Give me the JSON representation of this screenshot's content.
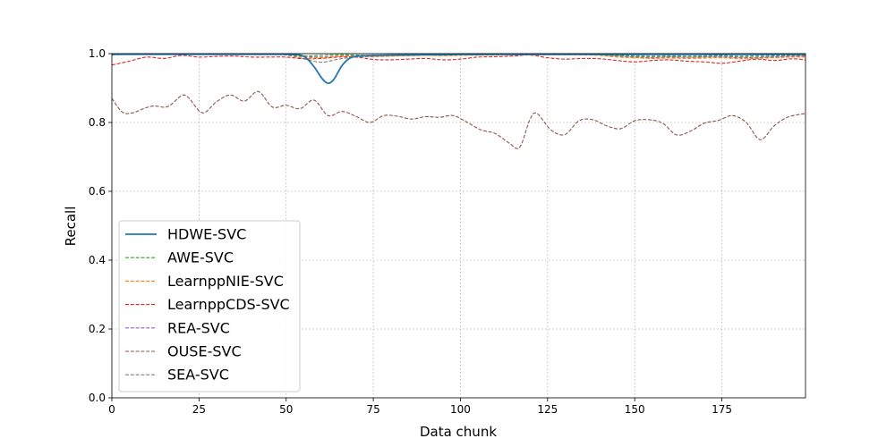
{
  "chart_data": {
    "type": "line",
    "title": "",
    "xlabel": "Data chunk",
    "ylabel": "Recall",
    "xlim": [
      0,
      199
    ],
    "ylim": [
      0.0,
      1.0
    ],
    "xticks": [
      0,
      25,
      50,
      75,
      100,
      125,
      150,
      175
    ],
    "yticks": [
      0.0,
      0.2,
      0.4,
      0.6,
      0.8,
      1.0
    ],
    "ytick_labels": [
      "0.0",
      "0.2",
      "0.4",
      "0.6",
      "0.8",
      "1.0"
    ],
    "grid": true,
    "legend_position": "center-left",
    "x": [
      0,
      5,
      10,
      15,
      20,
      25,
      30,
      35,
      40,
      45,
      50,
      55,
      60,
      65,
      70,
      75,
      80,
      85,
      90,
      95,
      100,
      105,
      110,
      115,
      120,
      125,
      130,
      135,
      140,
      145,
      150,
      155,
      160,
      165,
      170,
      175,
      180,
      185,
      190,
      195,
      199
    ],
    "series": [
      {
        "name": "HDWE-SVC",
        "color": "#1f77b4",
        "style": "solid",
        "x": [
          0,
          10,
          20,
          30,
          40,
          50,
          54,
          56,
          58,
          60,
          61,
          62,
          63,
          64,
          66,
          68,
          70,
          75,
          80,
          90,
          100,
          120,
          140,
          160,
          180,
          199
        ],
        "values": [
          0.998,
          0.998,
          0.998,
          0.998,
          0.998,
          0.998,
          0.996,
          0.985,
          0.962,
          0.932,
          0.92,
          0.914,
          0.918,
          0.93,
          0.965,
          0.985,
          0.992,
          0.995,
          0.996,
          0.997,
          0.998,
          0.998,
          0.998,
          0.998,
          0.998,
          0.998
        ]
      },
      {
        "name": "AWE-SVC",
        "color": "#2ca02c",
        "style": "dashed",
        "values": [
          0.997,
          0.998,
          0.998,
          0.998,
          0.998,
          0.998,
          0.998,
          0.998,
          0.998,
          0.998,
          0.997,
          0.993,
          0.995,
          0.997,
          0.996,
          0.995,
          0.996,
          0.996,
          0.997,
          0.996,
          0.997,
          0.997,
          0.997,
          0.998,
          0.998,
          0.998,
          0.998,
          0.998,
          0.997,
          0.995,
          0.994,
          0.993,
          0.994,
          0.993,
          0.994,
          0.995,
          0.993,
          0.994,
          0.995,
          0.996,
          0.996
        ]
      },
      {
        "name": "LearnppNIE-SVC",
        "color": "#ff7f0e",
        "style": "dashed",
        "values": [
          0.997,
          0.998,
          0.998,
          0.998,
          0.998,
          0.998,
          0.998,
          0.998,
          0.998,
          0.998,
          0.997,
          0.99,
          0.988,
          0.992,
          0.993,
          0.992,
          0.993,
          0.994,
          0.995,
          0.994,
          0.995,
          0.996,
          0.996,
          0.997,
          0.997,
          0.997,
          0.997,
          0.996,
          0.995,
          0.99,
          0.988,
          0.986,
          0.987,
          0.986,
          0.987,
          0.988,
          0.985,
          0.986,
          0.988,
          0.99,
          0.99
        ]
      },
      {
        "name": "LearnppCDS-SVC",
        "color": "#d62728",
        "style": "dashed",
        "values": [
          0.967,
          0.978,
          0.99,
          0.986,
          0.995,
          0.99,
          0.992,
          0.993,
          0.99,
          0.99,
          0.99,
          0.985,
          0.986,
          0.99,
          0.99,
          0.983,
          0.982,
          0.984,
          0.986,
          0.982,
          0.984,
          0.99,
          0.991,
          0.993,
          0.996,
          0.988,
          0.984,
          0.986,
          0.985,
          0.98,
          0.976,
          0.98,
          0.982,
          0.978,
          0.976,
          0.972,
          0.978,
          0.984,
          0.98,
          0.985,
          0.982
        ]
      },
      {
        "name": "REA-SVC",
        "color": "#9467bd",
        "style": "dashed",
        "values": [
          0.997,
          0.998,
          0.998,
          0.998,
          0.998,
          0.998,
          0.998,
          0.998,
          0.998,
          0.998,
          0.997,
          0.992,
          0.99,
          0.993,
          0.994,
          0.993,
          0.994,
          0.995,
          0.995,
          0.995,
          0.996,
          0.996,
          0.997,
          0.997,
          0.997,
          0.997,
          0.997,
          0.997,
          0.996,
          0.994,
          0.992,
          0.99,
          0.991,
          0.99,
          0.991,
          0.992,
          0.99,
          0.99,
          0.992,
          0.994,
          0.994
        ]
      },
      {
        "name": "OUSE-SVC",
        "color": "#8c564b",
        "style": "dashed",
        "x": [
          0,
          3,
          6,
          9,
          12,
          16,
          20,
          22,
          26,
          30,
          34,
          38,
          42,
          46,
          50,
          54,
          58,
          62,
          66,
          70,
          74,
          78,
          82,
          86,
          90,
          94,
          98,
          102,
          106,
          110,
          114,
          117,
          120,
          122,
          126,
          130,
          134,
          138,
          142,
          146,
          150,
          154,
          158,
          162,
          166,
          170,
          174,
          178,
          182,
          186,
          190,
          194,
          199
        ],
        "values": [
          0.87,
          0.83,
          0.828,
          0.84,
          0.848,
          0.846,
          0.878,
          0.872,
          0.828,
          0.86,
          0.88,
          0.862,
          0.89,
          0.845,
          0.85,
          0.84,
          0.865,
          0.82,
          0.832,
          0.818,
          0.8,
          0.82,
          0.818,
          0.81,
          0.817,
          0.815,
          0.82,
          0.8,
          0.778,
          0.768,
          0.74,
          0.728,
          0.81,
          0.826,
          0.778,
          0.765,
          0.805,
          0.808,
          0.79,
          0.782,
          0.805,
          0.808,
          0.798,
          0.764,
          0.775,
          0.798,
          0.806,
          0.82,
          0.8,
          0.75,
          0.79,
          0.816,
          0.826
        ]
      },
      {
        "name": "SEA-SVC",
        "color": "#7f7f7f",
        "style": "dashed",
        "values": [
          0.997,
          0.998,
          0.998,
          0.998,
          0.998,
          0.998,
          0.998,
          0.998,
          0.998,
          0.998,
          0.996,
          0.985,
          0.975,
          0.984,
          0.99,
          0.991,
          0.993,
          0.994,
          0.995,
          0.995,
          0.996,
          0.996,
          0.997,
          0.997,
          0.997,
          0.997,
          0.997,
          0.997,
          0.996,
          0.993,
          0.99,
          0.988,
          0.99,
          0.989,
          0.99,
          0.99,
          0.988,
          0.988,
          0.99,
          0.992,
          0.993
        ]
      }
    ]
  }
}
